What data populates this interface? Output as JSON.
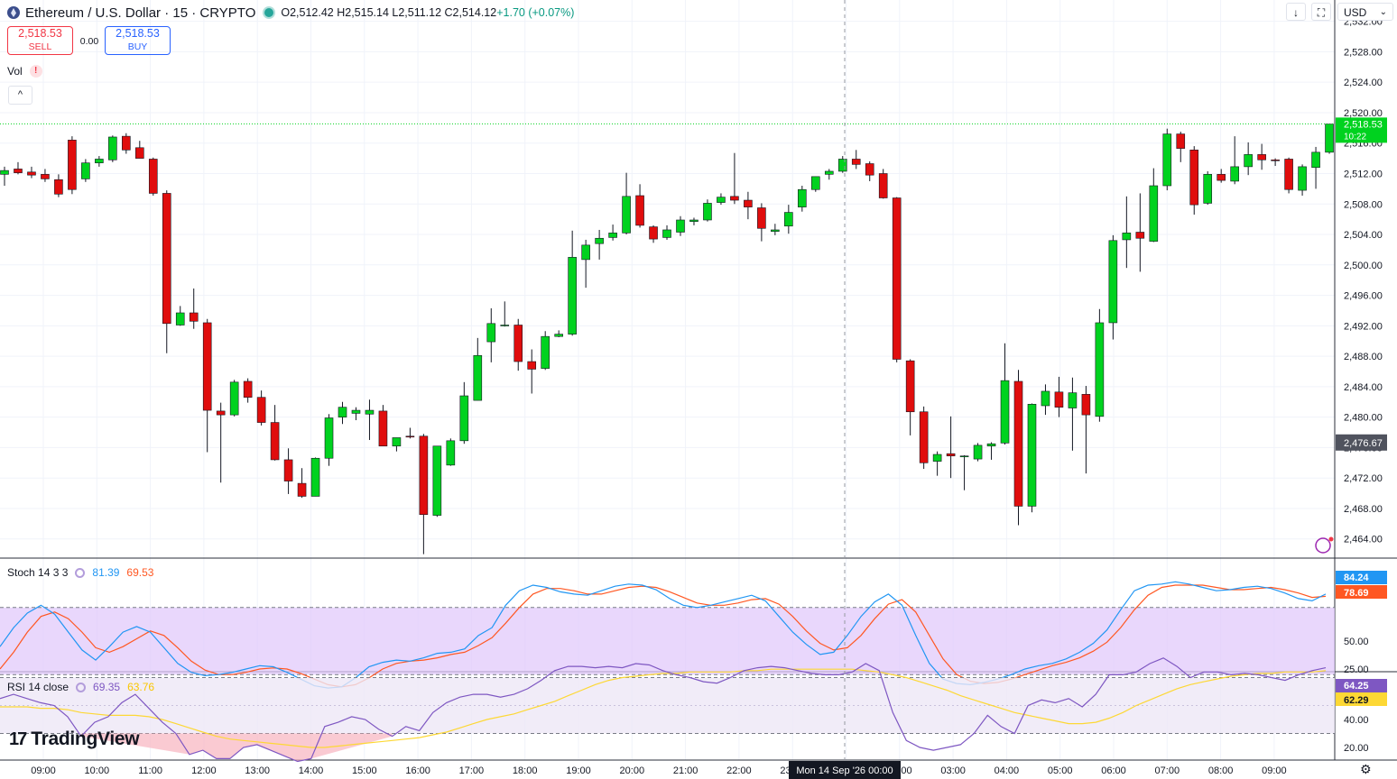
{
  "header": {
    "title": "Ethereum / U.S. Dollar · 15 · CRYPTO",
    "ohlc": "O2,512.42  H2,515.14  L2,511.12  C2,514.12 ",
    "change": "+1.70 (+0.07%)"
  },
  "trade": {
    "sell_price": "2,518.53",
    "sell_label": "SELL",
    "spread": "0.00",
    "buy_price": "2,518.53",
    "buy_label": "BUY"
  },
  "vol_label": "Vol",
  "vol_warning": "!",
  "collapse_glyph": "^",
  "toolbar": {
    "arrow": "↓",
    "fullscreen": "⛶",
    "currency": "USD"
  },
  "stoch": {
    "label": "Stoch 14 3 3",
    "k_value": "81.39",
    "d_value": "69.53",
    "k_last": "84.24",
    "d_last": "78.69"
  },
  "rsi": {
    "label": "RSI 14 close",
    "value": "69.35",
    "ma_value": "63.76",
    "last": "64.25",
    "ma_last": "62.29"
  },
  "logo_text": "TradingView",
  "crosshair_time": "Mon 14 Sep '26   00:00",
  "colors": {
    "up": "#00d21f",
    "down": "#e00d0d",
    "stoch_k": "#2196f3",
    "stoch_d": "#ff5722",
    "rsi": "#7e57c2",
    "rsi_ma": "#fdd835",
    "band": "#e1c9fb"
  },
  "chart_data": {
    "type": "candlestick",
    "title": "Ethereum / U.S. Dollar · 15 · CRYPTO",
    "x_ticks": [
      "09:00",
      "10:00",
      "11:00",
      "12:00",
      "13:00",
      "14:00",
      "15:00",
      "16:00",
      "17:00",
      "18:00",
      "19:00",
      "20:00",
      "21:00",
      "22:00",
      "23:00",
      "",
      "02:00",
      "03:00",
      "04:00",
      "05:00",
      "06:00",
      "07:00",
      "08:00",
      "09:00"
    ],
    "y_ticks": [
      "2,532.00",
      "2,528.00",
      "2,524.00",
      "2,520.00",
      "2,516.00",
      "2,512.00",
      "2,508.00",
      "2,504.00",
      "2,500.00",
      "2,496.00",
      "2,492.00",
      "2,488.00",
      "2,484.00",
      "2,480.00",
      "2,476.00",
      "2,472.00",
      "2,468.00",
      "2,464.00"
    ],
    "ylim": [
      2461.6,
      2534.8
    ],
    "last_price": "2,518.53",
    "countdown": "10:22",
    "crosshair_price": "2,476.67",
    "candles": [
      {
        "o": 2511.9,
        "h": 2512.9,
        "l": 2510.4,
        "c": 2512.4
      },
      {
        "o": 2512.6,
        "h": 2513.5,
        "l": 2511.9,
        "c": 2512.1
      },
      {
        "o": 2512.2,
        "h": 2512.9,
        "l": 2511.4,
        "c": 2511.8
      },
      {
        "o": 2511.9,
        "h": 2512.6,
        "l": 2510.9,
        "c": 2511.3
      },
      {
        "o": 2511.2,
        "h": 2511.9,
        "l": 2508.9,
        "c": 2509.3
      },
      {
        "o": 2516.4,
        "h": 2516.9,
        "l": 2509.3,
        "c": 2509.9
      },
      {
        "o": 2511.3,
        "h": 2513.9,
        "l": 2510.9,
        "c": 2513.4
      },
      {
        "o": 2513.4,
        "h": 2514.3,
        "l": 2512.9,
        "c": 2513.9
      },
      {
        "o": 2513.8,
        "h": 2517.0,
        "l": 2513.5,
        "c": 2516.8
      },
      {
        "o": 2516.9,
        "h": 2517.3,
        "l": 2514.6,
        "c": 2515.1
      },
      {
        "o": 2515.4,
        "h": 2516.3,
        "l": 2514.0,
        "c": 2514.0
      },
      {
        "o": 2513.9,
        "h": 2514.1,
        "l": 2509.1,
        "c": 2509.4
      },
      {
        "o": 2509.4,
        "h": 2509.8,
        "l": 2488.4,
        "c": 2492.3
      },
      {
        "o": 2492.1,
        "h": 2494.6,
        "l": 2492.0,
        "c": 2493.7
      },
      {
        "o": 2493.7,
        "h": 2496.9,
        "l": 2491.6,
        "c": 2492.6
      },
      {
        "o": 2492.4,
        "h": 2492.9,
        "l": 2475.4,
        "c": 2480.9
      },
      {
        "o": 2480.8,
        "h": 2481.9,
        "l": 2471.4,
        "c": 2480.3
      },
      {
        "o": 2480.3,
        "h": 2484.9,
        "l": 2480.1,
        "c": 2484.6
      },
      {
        "o": 2484.7,
        "h": 2485.1,
        "l": 2481.9,
        "c": 2482.6
      },
      {
        "o": 2482.6,
        "h": 2483.5,
        "l": 2478.9,
        "c": 2479.3
      },
      {
        "o": 2479.3,
        "h": 2481.6,
        "l": 2474.3,
        "c": 2474.4
      },
      {
        "o": 2474.4,
        "h": 2475.9,
        "l": 2469.9,
        "c": 2471.6
      },
      {
        "o": 2471.3,
        "h": 2473.3,
        "l": 2469.4,
        "c": 2469.6
      },
      {
        "o": 2469.6,
        "h": 2474.7,
        "l": 2469.6,
        "c": 2474.6
      },
      {
        "o": 2474.6,
        "h": 2480.4,
        "l": 2473.6,
        "c": 2479.9
      },
      {
        "o": 2480.0,
        "h": 2482.0,
        "l": 2479.1,
        "c": 2481.3
      },
      {
        "o": 2480.5,
        "h": 2481.3,
        "l": 2479.6,
        "c": 2480.9
      },
      {
        "o": 2480.4,
        "h": 2482.3,
        "l": 2477.0,
        "c": 2480.9
      },
      {
        "o": 2480.8,
        "h": 2481.6,
        "l": 2476.5,
        "c": 2476.2
      },
      {
        "o": 2476.2,
        "h": 2477.3,
        "l": 2475.5,
        "c": 2477.3
      },
      {
        "o": 2477.5,
        "h": 2478.6,
        "l": 2477.2,
        "c": 2477.4
      },
      {
        "o": 2477.5,
        "h": 2477.8,
        "l": 2462.0,
        "c": 2467.2
      },
      {
        "o": 2467.1,
        "h": 2476.2,
        "l": 2466.9,
        "c": 2476.2
      },
      {
        "o": 2473.7,
        "h": 2477.2,
        "l": 2473.6,
        "c": 2476.9
      },
      {
        "o": 2476.9,
        "h": 2484.6,
        "l": 2476.5,
        "c": 2482.8
      },
      {
        "o": 2482.2,
        "h": 2490.4,
        "l": 2482.2,
        "c": 2488.1
      },
      {
        "o": 2489.9,
        "h": 2494.3,
        "l": 2487.2,
        "c": 2492.3
      },
      {
        "o": 2492.1,
        "h": 2495.2,
        "l": 2491.9,
        "c": 2492.1
      },
      {
        "o": 2492.1,
        "h": 2492.9,
        "l": 2486.1,
        "c": 2487.3
      },
      {
        "o": 2487.3,
        "h": 2488.9,
        "l": 2483.1,
        "c": 2486.3
      },
      {
        "o": 2486.4,
        "h": 2491.3,
        "l": 2486.2,
        "c": 2490.6
      },
      {
        "o": 2490.6,
        "h": 2491.4,
        "l": 2490.5,
        "c": 2490.9
      },
      {
        "o": 2490.9,
        "h": 2504.5,
        "l": 2490.7,
        "c": 2501.0
      },
      {
        "o": 2500.7,
        "h": 2503.3,
        "l": 2497.0,
        "c": 2502.6
      },
      {
        "o": 2502.8,
        "h": 2504.6,
        "l": 2500.7,
        "c": 2503.5
      },
      {
        "o": 2503.6,
        "h": 2505.3,
        "l": 2503.2,
        "c": 2504.2
      },
      {
        "o": 2504.2,
        "h": 2512.1,
        "l": 2504.0,
        "c": 2509.0
      },
      {
        "o": 2509.1,
        "h": 2510.6,
        "l": 2504.9,
        "c": 2505.2
      },
      {
        "o": 2505.0,
        "h": 2505.2,
        "l": 2502.9,
        "c": 2503.4
      },
      {
        "o": 2503.6,
        "h": 2505.2,
        "l": 2503.3,
        "c": 2504.6
      },
      {
        "o": 2504.3,
        "h": 2506.4,
        "l": 2503.8,
        "c": 2505.9
      },
      {
        "o": 2505.7,
        "h": 2506.2,
        "l": 2505.2,
        "c": 2505.9
      },
      {
        "o": 2505.9,
        "h": 2508.6,
        "l": 2505.7,
        "c": 2508.1
      },
      {
        "o": 2508.2,
        "h": 2509.4,
        "l": 2507.9,
        "c": 2508.9
      },
      {
        "o": 2509.0,
        "h": 2514.7,
        "l": 2508.0,
        "c": 2508.5
      },
      {
        "o": 2508.5,
        "h": 2509.6,
        "l": 2506.0,
        "c": 2507.6
      },
      {
        "o": 2507.5,
        "h": 2508.1,
        "l": 2503.1,
        "c": 2504.8
      },
      {
        "o": 2504.4,
        "h": 2505.4,
        "l": 2503.9,
        "c": 2504.6
      },
      {
        "o": 2505.1,
        "h": 2507.9,
        "l": 2504.1,
        "c": 2506.9
      },
      {
        "o": 2507.6,
        "h": 2510.4,
        "l": 2507.0,
        "c": 2509.9
      },
      {
        "o": 2509.9,
        "h": 2511.6,
        "l": 2509.6,
        "c": 2511.6
      },
      {
        "o": 2511.9,
        "h": 2512.6,
        "l": 2511.2,
        "c": 2512.3
      },
      {
        "o": 2512.3,
        "h": 2514.3,
        "l": 2512.1,
        "c": 2513.9
      },
      {
        "o": 2513.9,
        "h": 2515.1,
        "l": 2512.6,
        "c": 2513.2
      },
      {
        "o": 2513.3,
        "h": 2513.6,
        "l": 2511.0,
        "c": 2511.8
      },
      {
        "o": 2512.0,
        "h": 2512.6,
        "l": 2508.7,
        "c": 2508.8
      },
      {
        "o": 2508.8,
        "h": 2508.9,
        "l": 2487.2,
        "c": 2487.6
      },
      {
        "o": 2487.4,
        "h": 2487.6,
        "l": 2477.6,
        "c": 2480.7
      },
      {
        "o": 2480.7,
        "h": 2481.4,
        "l": 2473.2,
        "c": 2474.0
      },
      {
        "o": 2474.2,
        "h": 2475.5,
        "l": 2472.3,
        "c": 2475.1
      },
      {
        "o": 2475.2,
        "h": 2480.1,
        "l": 2472.0,
        "c": 2474.9
      },
      {
        "o": 2474.9,
        "h": 2475.0,
        "l": 2470.4,
        "c": 2474.9
      },
      {
        "o": 2474.5,
        "h": 2476.6,
        "l": 2474.2,
        "c": 2476.3
      },
      {
        "o": 2476.2,
        "h": 2476.7,
        "l": 2474.4,
        "c": 2476.5
      },
      {
        "o": 2476.6,
        "h": 2489.7,
        "l": 2476.4,
        "c": 2484.8
      },
      {
        "o": 2484.7,
        "h": 2486.2,
        "l": 2465.8,
        "c": 2468.3
      },
      {
        "o": 2468.3,
        "h": 2481.8,
        "l": 2467.5,
        "c": 2481.7
      },
      {
        "o": 2481.5,
        "h": 2484.3,
        "l": 2480.3,
        "c": 2483.4
      },
      {
        "o": 2483.3,
        "h": 2485.3,
        "l": 2480.0,
        "c": 2481.3
      },
      {
        "o": 2481.2,
        "h": 2485.2,
        "l": 2475.6,
        "c": 2483.2
      },
      {
        "o": 2483.0,
        "h": 2484.1,
        "l": 2472.6,
        "c": 2480.3
      },
      {
        "o": 2480.1,
        "h": 2494.2,
        "l": 2479.4,
        "c": 2492.4
      },
      {
        "o": 2492.4,
        "h": 2503.9,
        "l": 2490.2,
        "c": 2503.2
      },
      {
        "o": 2503.3,
        "h": 2509.0,
        "l": 2499.6,
        "c": 2504.2
      },
      {
        "o": 2504.3,
        "h": 2509.4,
        "l": 2499.1,
        "c": 2503.5
      },
      {
        "o": 2503.1,
        "h": 2512.7,
        "l": 2503.0,
        "c": 2510.4
      },
      {
        "o": 2510.4,
        "h": 2517.9,
        "l": 2509.8,
        "c": 2517.2
      },
      {
        "o": 2517.2,
        "h": 2517.5,
        "l": 2513.5,
        "c": 2515.3
      },
      {
        "o": 2515.1,
        "h": 2515.6,
        "l": 2506.6,
        "c": 2507.9
      },
      {
        "o": 2508.1,
        "h": 2512.3,
        "l": 2507.9,
        "c": 2511.9
      },
      {
        "o": 2511.9,
        "h": 2512.6,
        "l": 2510.8,
        "c": 2511.1
      },
      {
        "o": 2511.0,
        "h": 2516.9,
        "l": 2510.6,
        "c": 2512.9
      },
      {
        "o": 2512.9,
        "h": 2516.1,
        "l": 2511.8,
        "c": 2514.5
      },
      {
        "o": 2514.5,
        "h": 2515.9,
        "l": 2512.5,
        "c": 2513.8
      },
      {
        "o": 2513.8,
        "h": 2514.0,
        "l": 2513.0,
        "c": 2513.7
      },
      {
        "o": 2513.9,
        "h": 2514.1,
        "l": 2509.4,
        "c": 2509.9
      },
      {
        "o": 2509.8,
        "h": 2513.2,
        "l": 2509.1,
        "c": 2512.9
      },
      {
        "o": 2512.8,
        "h": 2515.5,
        "l": 2510.0,
        "c": 2514.8
      },
      {
        "o": 2514.8,
        "h": 2518.5,
        "l": 2514.6,
        "c": 2518.5
      }
    ],
    "stoch": {
      "y_ticks": [
        "50.00",
        "25.00"
      ],
      "bands": [
        80,
        20
      ],
      "k": [
        45,
        62,
        75,
        82,
        74,
        58,
        42,
        33,
        45,
        58,
        63,
        58,
        44,
        30,
        22,
        19,
        20,
        22,
        25,
        28,
        27,
        22,
        16,
        10,
        8,
        9,
        17,
        27,
        31,
        33,
        32,
        35,
        39,
        40,
        43,
        55,
        62,
        82,
        95,
        100,
        98,
        94,
        92,
        91,
        95,
        99,
        101,
        100,
        96,
        88,
        82,
        80,
        82,
        85,
        88,
        91,
        86,
        72,
        58,
        47,
        38,
        40,
        55,
        72,
        85,
        92,
        82,
        55,
        30,
        16,
        12,
        11,
        13,
        16,
        20,
        25,
        28,
        30,
        34,
        40,
        48,
        60,
        78,
        95,
        100,
        101,
        103,
        101,
        98,
        95,
        96,
        98,
        99,
        97,
        93,
        88,
        86,
        92
      ],
      "d": [
        25,
        40,
        58,
        72,
        76,
        70,
        58,
        44,
        40,
        45,
        52,
        59,
        55,
        44,
        32,
        24,
        20,
        20,
        22,
        25,
        26,
        25,
        21,
        16,
        11,
        9,
        11,
        17,
        25,
        30,
        32,
        33,
        35,
        38,
        40,
        46,
        53,
        66,
        80,
        92,
        97,
        97,
        95,
        92,
        92,
        95,
        98,
        99,
        98,
        94,
        89,
        84,
        82,
        82,
        84,
        87,
        88,
        83,
        72,
        59,
        48,
        42,
        44,
        55,
        70,
        83,
        87,
        76,
        55,
        34,
        20,
        14,
        12,
        13,
        16,
        20,
        24,
        28,
        31,
        35,
        41,
        49,
        62,
        78,
        91,
        98,
        100,
        100,
        100,
        98,
        96,
        96,
        97,
        98,
        96,
        93,
        89,
        90
      ]
    },
    "rsi": {
      "y_ticks": [
        "40.00",
        "20.00"
      ],
      "bands": [
        70,
        30
      ],
      "rsi": [
        55,
        58,
        55,
        52,
        50,
        42,
        28,
        38,
        42,
        52,
        58,
        48,
        38,
        30,
        15,
        18,
        12,
        12,
        20,
        22,
        18,
        14,
        10,
        12,
        35,
        38,
        42,
        40,
        33,
        28,
        35,
        32,
        45,
        52,
        56,
        58,
        58,
        56,
        58,
        62,
        68,
        75,
        78,
        78,
        77,
        78,
        77,
        80,
        79,
        75,
        72,
        70,
        67,
        66,
        70,
        75,
        77,
        78,
        77,
        75,
        73,
        72,
        72,
        74,
        80,
        75,
        45,
        25,
        20,
        18,
        20,
        22,
        30,
        43,
        35,
        30,
        50,
        54,
        52,
        55,
        49,
        58,
        72,
        72,
        74,
        80,
        84,
        78,
        70,
        74,
        74,
        72,
        73,
        72,
        70,
        68,
        72,
        75,
        77
      ],
      "ma": [
        49,
        49,
        49,
        48,
        48,
        47,
        45,
        44,
        43,
        43,
        43,
        42,
        40,
        37,
        34,
        31,
        28,
        26,
        25,
        24,
        23,
        22,
        21,
        20,
        20,
        21,
        22,
        23,
        24,
        25,
        26,
        27,
        29,
        31,
        34,
        37,
        40,
        42,
        44,
        47,
        50,
        53,
        57,
        61,
        65,
        68,
        70,
        71,
        72,
        73,
        73,
        74,
        74,
        74,
        74,
        75,
        75,
        76,
        76,
        76,
        76,
        76,
        76,
        76,
        75,
        74,
        72,
        70,
        67,
        64,
        61,
        57,
        54,
        51,
        48,
        45,
        43,
        41,
        39,
        37,
        37,
        38,
        41,
        45,
        50,
        54,
        58,
        62,
        65,
        67,
        69,
        71,
        72,
        73,
        73,
        74,
        74,
        74,
        75
      ]
    }
  }
}
